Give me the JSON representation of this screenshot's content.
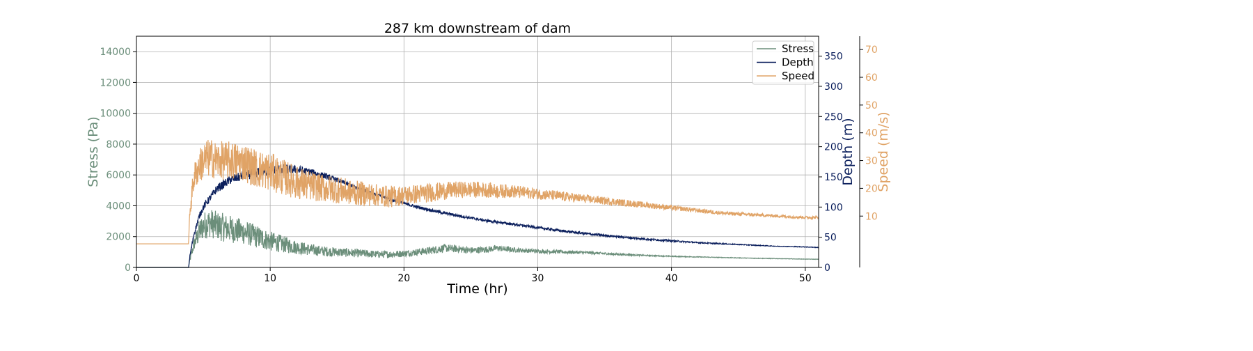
{
  "chart_data": {
    "type": "line",
    "title": "287 km downstream of dam",
    "xlabel": "Time (hr)",
    "xlim": [
      0,
      51
    ],
    "xticks": [
      0,
      10,
      20,
      30,
      40,
      50
    ],
    "grid": true,
    "legend_position": "top-right",
    "axes": [
      {
        "id": "stress",
        "label": "Stress (Pa)",
        "side": "left",
        "color": "#6b8e7a",
        "ylim": [
          0,
          15000
        ],
        "ticks": [
          0,
          2000,
          4000,
          6000,
          8000,
          10000,
          12000,
          14000
        ]
      },
      {
        "id": "depth",
        "label": "Depth (m)",
        "side": "right",
        "color": "#0b1f5c",
        "ylim": [
          0,
          383
        ],
        "ticks": [
          0,
          50,
          100,
          150,
          200,
          250,
          300,
          350
        ]
      },
      {
        "id": "speed",
        "label": "Speed (m/s)",
        "side": "right-outer",
        "color": "#e0a366",
        "ylim": [
          -8.5,
          74.8
        ],
        "ticks": [
          10,
          20,
          30,
          40,
          50,
          60,
          70
        ]
      }
    ],
    "series": [
      {
        "name": "Stress",
        "axis": "stress",
        "color": "#6b8e7a",
        "x": [
          0,
          3.9,
          4.0,
          4.3,
          4.7,
          5.0,
          5.5,
          6,
          7,
          8,
          9,
          10,
          11,
          12,
          13,
          14,
          15,
          16,
          17,
          18,
          19,
          20,
          21,
          22,
          23,
          24,
          25,
          26,
          27,
          28,
          29,
          30,
          32,
          34,
          36,
          38,
          40,
          42,
          44,
          46,
          48,
          50,
          51
        ],
        "y": [
          0,
          0,
          500,
          1500,
          2300,
          2700,
          2900,
          2700,
          2500,
          2300,
          2000,
          1700,
          1500,
          1300,
          1150,
          1050,
          1000,
          950,
          900,
          850,
          850,
          900,
          1000,
          1100,
          1250,
          1200,
          1100,
          1150,
          1250,
          1150,
          1100,
          1050,
          1000,
          950,
          850,
          780,
          720,
          680,
          640,
          600,
          570,
          540,
          530
        ],
        "noise": [
          0,
          0,
          150,
          400,
          800,
          900,
          950,
          950,
          900,
          800,
          750,
          650,
          550,
          450,
          380,
          330,
          300,
          280,
          260,
          240,
          230,
          220,
          230,
          260,
          260,
          240,
          220,
          210,
          200,
          170,
          140,
          130,
          110,
          90,
          60,
          40,
          30,
          25,
          20,
          18,
          15,
          12,
          12
        ]
      },
      {
        "name": "Depth",
        "axis": "depth",
        "color": "#0b1f5c",
        "x": [
          0,
          3.9,
          4.0,
          4.3,
          4.7,
          5.0,
          5.5,
          6,
          7,
          8,
          9,
          10,
          11,
          12,
          13,
          14,
          15,
          16,
          17,
          18,
          19,
          20,
          21,
          22,
          23,
          24,
          25,
          26,
          27,
          28,
          29,
          30,
          32,
          34,
          36,
          38,
          40,
          42,
          44,
          46,
          48,
          50,
          51
        ],
        "y": [
          0,
          0,
          20,
          55,
          85,
          100,
          115,
          130,
          145,
          152,
          157,
          160,
          163,
          162,
          158,
          152,
          145,
          136,
          128,
          120,
          113,
          106,
          100,
          95,
          90,
          86,
          82,
          78,
          75,
          72,
          69,
          66,
          60,
          55,
          51,
          47,
          44,
          41,
          39,
          37,
          35,
          34,
          33
        ],
        "noise": [
          0,
          0,
          2,
          4,
          5,
          6,
          6,
          7,
          7,
          8,
          8,
          8,
          8,
          7,
          6,
          5,
          4,
          3.5,
          3,
          3,
          3,
          2.5,
          2.5,
          2.5,
          2.5,
          2.5,
          2,
          2,
          2,
          2,
          2,
          2,
          2,
          2,
          1.8,
          1.6,
          1.5,
          1,
          0.8,
          0.6,
          0.5,
          0.5,
          0.5
        ]
      },
      {
        "name": "Speed",
        "axis": "speed",
        "color": "#e0a366",
        "x": [
          0,
          3.9,
          4.0,
          4.3,
          4.7,
          5.0,
          5.5,
          6,
          7,
          8,
          9,
          10,
          11,
          12,
          13,
          14,
          15,
          16,
          17,
          18,
          19,
          20,
          21,
          22,
          23,
          24,
          25,
          26,
          27,
          28,
          29,
          30,
          32,
          34,
          36,
          38,
          40,
          42,
          44,
          46,
          48,
          50,
          51
        ],
        "y": [
          0,
          0,
          12,
          24,
          28,
          30,
          31,
          30,
          30,
          29.5,
          27,
          26,
          24,
          22,
          21,
          20,
          19.5,
          18.5,
          18,
          17.5,
          17,
          17.5,
          18,
          18.5,
          19,
          19.5,
          19.5,
          19.5,
          19,
          19,
          18.5,
          18,
          17,
          16,
          15,
          14,
          13,
          12,
          11,
          10.5,
          10,
          9.5,
          9.5
        ],
        "noise": [
          0,
          0,
          3,
          5,
          6,
          7,
          7,
          7,
          7,
          7,
          7,
          7,
          6.5,
          6,
          5.5,
          5,
          5,
          4.5,
          4.5,
          4,
          4,
          3.5,
          3.5,
          3.5,
          3.2,
          3,
          3,
          2.8,
          2.6,
          2.4,
          2.2,
          2,
          1.8,
          1.5,
          1.3,
          1.1,
          0.9,
          0.8,
          0.7,
          0.6,
          0.5,
          0.5,
          0.5
        ]
      }
    ]
  }
}
